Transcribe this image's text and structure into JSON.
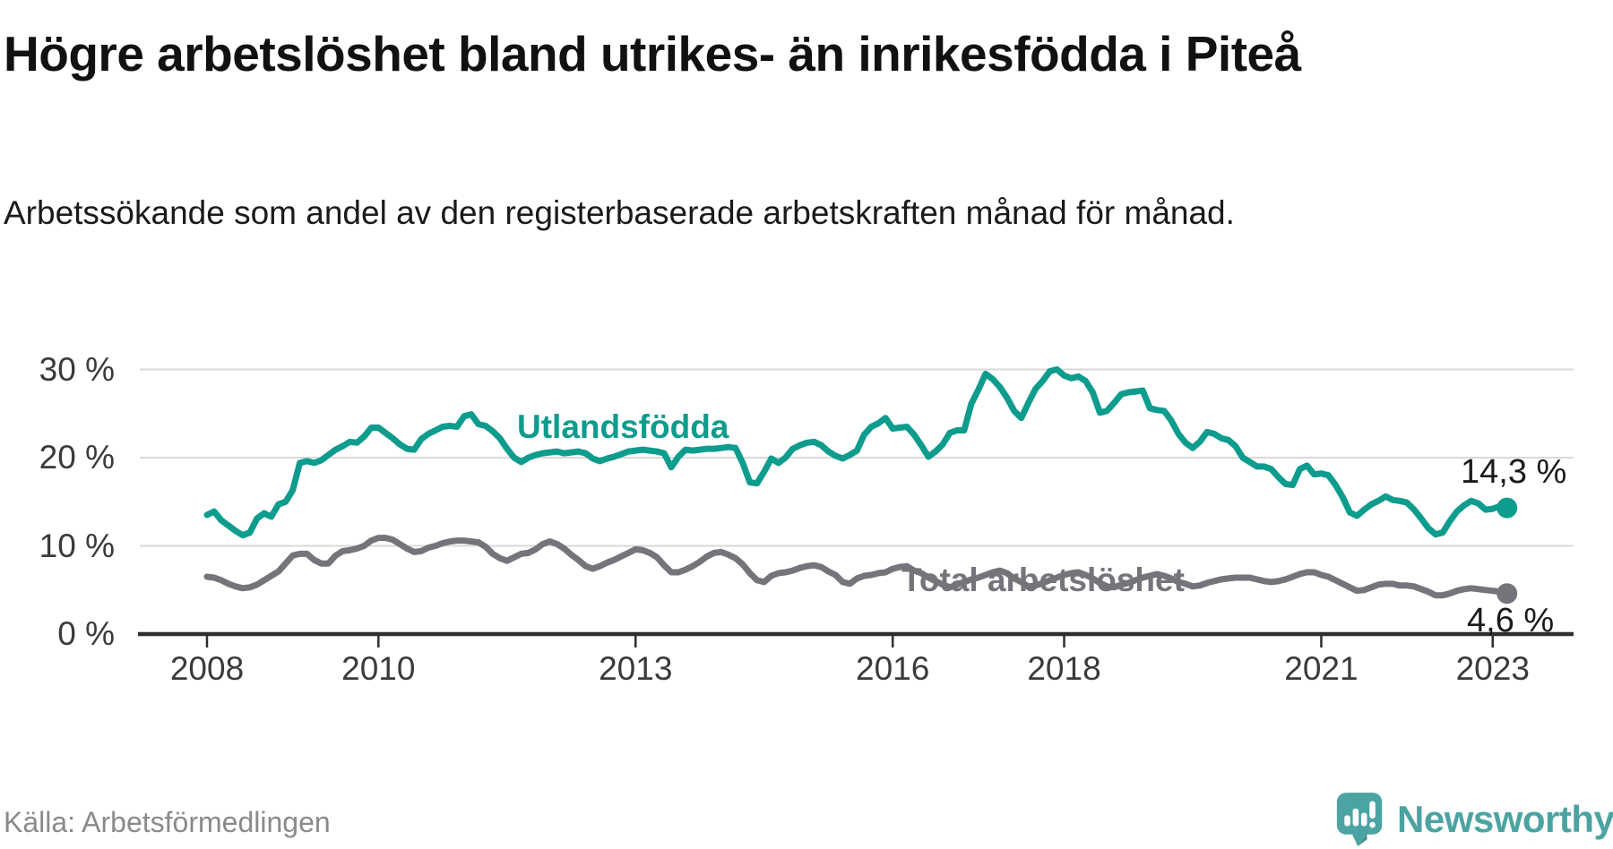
{
  "header": {
    "title": "Högre arbetslöshet bland utrikes- än inrikesfödda i Piteå",
    "subtitle": "Arbetssökande som andel av den registerbaserade arbetskraften månad för månad."
  },
  "footer": {
    "source": "Källa: Arbetsförmedlingen",
    "brand": "Newsworthy"
  },
  "colors": {
    "utlandsfodda": "#0d9c8d",
    "total": "#75747a",
    "grid": "#d9d9d9",
    "axis": "#2e2e2e",
    "text_dark": "#1a1a1a",
    "tick_text": "#3a3a3a",
    "source_text": "#8a8a8a",
    "brand_teal": "#4ba4a2"
  },
  "chart_data": {
    "type": "line",
    "title": "Högre arbetslöshet bland utrikes- än inrikesfödda i Piteå",
    "subtitle": "Arbetssökande som andel av den registerbaserade arbetskraften månad för månad.",
    "x_unit": "month",
    "x_start": "2008-01",
    "x_end": "2023-03",
    "x_tick_years": [
      2008,
      2010,
      2013,
      2016,
      2018,
      2021,
      2023
    ],
    "y_ticks": [
      {
        "value": 30,
        "label": "30 %"
      },
      {
        "value": 20,
        "label": "20 %"
      },
      {
        "value": 10,
        "label": "10 %"
      },
      {
        "value": 0,
        "label": "0 %"
      }
    ],
    "ylim": [
      0,
      33
    ],
    "grid": "horizontal",
    "legend_position": "inline-labels",
    "series": [
      {
        "name": "Utlandsfödda",
        "color": "#0d9c8d",
        "end_label": "14,3 %",
        "end_value": 14.3,
        "values": [
          13.5,
          13.9,
          12.9,
          12.3,
          11.7,
          11.2,
          11.5,
          13.1,
          13.7,
          13.3,
          14.7,
          15.0,
          16.3,
          19.4,
          19.6,
          19.4,
          19.7,
          20.3,
          20.9,
          21.3,
          21.8,
          21.7,
          22.4,
          23.4,
          23.4,
          22.8,
          22.2,
          21.5,
          21.0,
          20.9,
          22.1,
          22.7,
          23.1,
          23.5,
          23.6,
          23.5,
          24.7,
          24.9,
          23.8,
          23.6,
          23.0,
          22.2,
          21.0,
          20.0,
          19.5,
          20.0,
          20.3,
          20.5,
          20.6,
          20.7,
          20.5,
          20.6,
          20.7,
          20.5,
          19.9,
          19.6,
          19.9,
          20.1,
          20.4,
          20.7,
          20.8,
          20.9,
          20.8,
          20.7,
          20.5,
          18.9,
          20.1,
          20.9,
          20.8,
          20.9,
          21.0,
          21.0,
          21.1,
          21.2,
          21.1,
          19.4,
          17.2,
          17.1,
          18.4,
          19.9,
          19.4,
          20.0,
          21.0,
          21.4,
          21.7,
          21.8,
          21.4,
          20.7,
          20.2,
          19.9,
          20.3,
          20.8,
          22.6,
          23.5,
          23.9,
          24.5,
          23.3,
          23.4,
          23.5,
          22.6,
          21.4,
          20.1,
          20.7,
          21.5,
          22.8,
          23.1,
          23.1,
          26.1,
          27.7,
          29.5,
          28.9,
          28.0,
          26.8,
          25.3,
          24.5,
          26.2,
          27.8,
          28.7,
          29.8,
          30.0,
          29.3,
          29.0,
          29.2,
          28.7,
          27.4,
          25.1,
          25.3,
          26.2,
          27.2,
          27.4,
          27.5,
          27.6,
          25.6,
          25.4,
          25.3,
          24.2,
          22.7,
          21.7,
          21.1,
          21.8,
          22.9,
          22.7,
          22.2,
          22.0,
          21.3,
          20.0,
          19.5,
          19.0,
          19.0,
          18.7,
          17.8,
          17.0,
          16.9,
          18.7,
          19.1,
          18.1,
          18.2,
          18.0,
          16.9,
          15.5,
          13.8,
          13.4,
          14.1,
          14.7,
          15.1,
          15.6,
          15.2,
          15.1,
          14.9,
          14.1,
          13.1,
          12.0,
          11.3,
          11.5,
          12.8,
          13.9,
          14.6,
          15.1,
          14.8,
          14.1,
          14.2,
          14.5,
          14.3
        ]
      },
      {
        "name": "Total arbetslöshet",
        "color": "#75747a",
        "end_label": "4,6 %",
        "end_value": 4.6,
        "values": [
          6.5,
          6.4,
          6.1,
          5.7,
          5.4,
          5.2,
          5.3,
          5.6,
          6.1,
          6.6,
          7.1,
          8.0,
          8.9,
          9.1,
          9.1,
          8.4,
          8.0,
          8.0,
          8.9,
          9.4,
          9.5,
          9.7,
          10.0,
          10.6,
          10.9,
          10.9,
          10.7,
          10.2,
          9.7,
          9.3,
          9.4,
          9.8,
          10.0,
          10.3,
          10.5,
          10.6,
          10.6,
          10.5,
          10.4,
          9.9,
          9.1,
          8.6,
          8.3,
          8.7,
          9.1,
          9.2,
          9.6,
          10.2,
          10.5,
          10.2,
          9.7,
          9.0,
          8.4,
          7.7,
          7.4,
          7.7,
          8.1,
          8.4,
          8.8,
          9.2,
          9.6,
          9.5,
          9.2,
          8.7,
          7.8,
          7.0,
          7.0,
          7.3,
          7.7,
          8.2,
          8.8,
          9.2,
          9.3,
          9.0,
          8.6,
          7.9,
          6.9,
          6.1,
          5.9,
          6.6,
          6.9,
          7.0,
          7.2,
          7.5,
          7.7,
          7.8,
          7.6,
          7.1,
          6.7,
          5.9,
          5.7,
          6.3,
          6.6,
          6.7,
          6.9,
          7.0,
          7.4,
          7.6,
          7.7,
          7.2,
          6.9,
          6.4,
          6.0,
          5.6,
          5.3,
          5.6,
          5.9,
          6.2,
          6.4,
          6.7,
          7.0,
          7.2,
          6.9,
          6.3,
          5.9,
          5.4,
          5.5,
          5.8,
          6.1,
          6.4,
          6.7,
          6.9,
          7.0,
          6.7,
          6.3,
          5.8,
          5.4,
          5.3,
          5.6,
          5.8,
          6.1,
          6.4,
          6.6,
          6.8,
          6.6,
          6.3,
          5.9,
          5.7,
          5.4,
          5.5,
          5.8,
          6.0,
          6.2,
          6.3,
          6.4,
          6.4,
          6.4,
          6.2,
          6.0,
          5.9,
          6.0,
          6.2,
          6.5,
          6.8,
          7.0,
          7.0,
          6.7,
          6.5,
          6.1,
          5.7,
          5.3,
          4.9,
          5.0,
          5.3,
          5.6,
          5.7,
          5.7,
          5.5,
          5.5,
          5.4,
          5.1,
          4.8,
          4.4,
          4.4,
          4.6,
          4.9,
          5.1,
          5.2,
          5.1,
          5.0,
          4.9,
          4.8,
          4.6
        ]
      }
    ]
  }
}
